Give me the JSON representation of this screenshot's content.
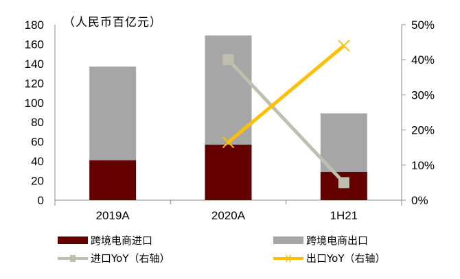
{
  "chart_data": {
    "type": "bar+line",
    "title": "",
    "unit_label": "（人民币百亿元）",
    "categories": [
      "2019A",
      "2020A",
      "1H21"
    ],
    "series": [
      {
        "name": "跨境电商进口",
        "type": "bar",
        "stacked": true,
        "axis": "left",
        "color": "#640000",
        "values": [
          41,
          57,
          29
        ]
      },
      {
        "name": "跨境电商出口",
        "type": "bar",
        "stacked": true,
        "axis": "left",
        "color": "#A6A6A6",
        "values": [
          96,
          112,
          60
        ]
      },
      {
        "name": "进口YoY（右轴）",
        "type": "line",
        "axis": "right",
        "color": "#BFBFAF",
        "marker": "square",
        "values": [
          null,
          40,
          5
        ]
      },
      {
        "name": "出口YoY（右轴）",
        "type": "line",
        "axis": "right",
        "color": "#FFC000",
        "marker": "x",
        "values": [
          null,
          16.5,
          44
        ]
      }
    ],
    "left_axis": {
      "min": 0,
      "max": 180,
      "step": 20,
      "ticks": [
        "0",
        "20",
        "40",
        "60",
        "80",
        "100",
        "120",
        "140",
        "160",
        "180"
      ]
    },
    "right_axis": {
      "min": 0,
      "max": 50,
      "step": 10,
      "ticks": [
        "0%",
        "10%",
        "20%",
        "30%",
        "40%",
        "50%"
      ]
    },
    "grid": false,
    "legend_position": "bottom"
  },
  "legend": {
    "items": [
      {
        "label": "跨境电商进口",
        "kind": "bar",
        "color": "#640000"
      },
      {
        "label": "跨境电商出口",
        "kind": "bar",
        "color": "#A6A6A6"
      },
      {
        "label": "进口YoY（右轴）",
        "kind": "line",
        "color": "#BFBFAF"
      },
      {
        "label": "出口YoY（右轴）",
        "kind": "line",
        "color": "#FFC000"
      }
    ]
  }
}
